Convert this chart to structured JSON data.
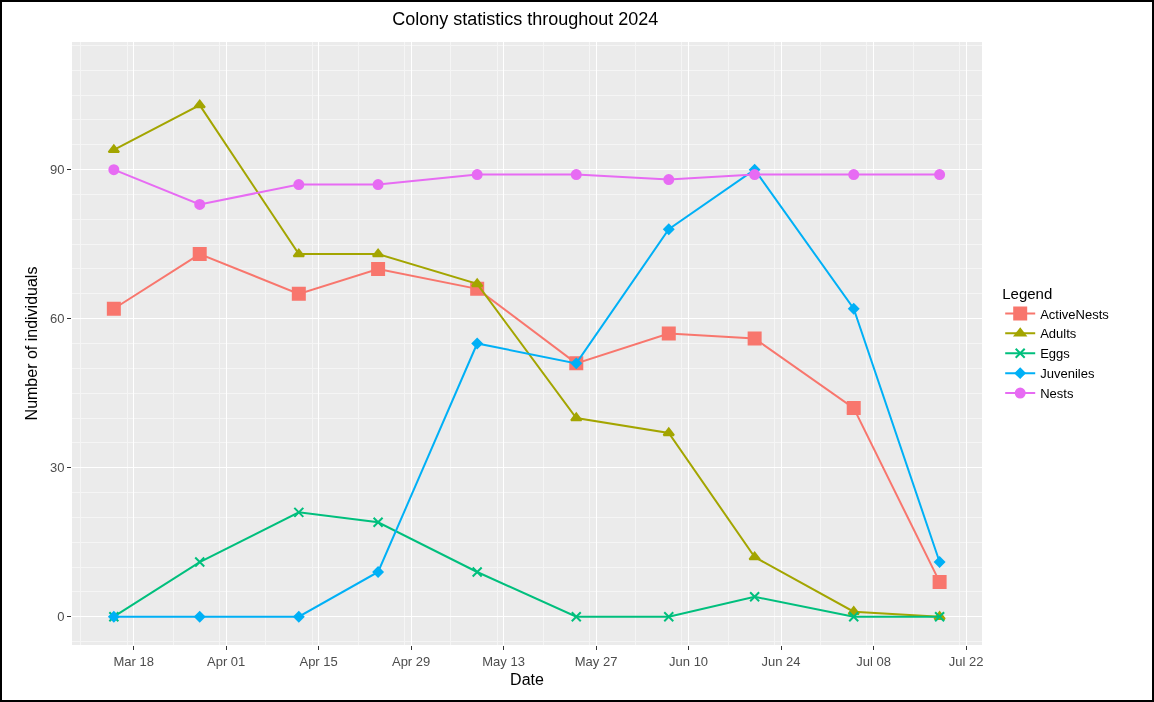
{
  "chart_data": {
    "type": "line",
    "title": "Colony statistics throughout 2024",
    "xlabel": "Date",
    "ylabel": "Number of individuals",
    "legend_title": "Legend",
    "x": [
      "2024-03-15",
      "2024-03-28",
      "2024-04-12",
      "2024-04-24",
      "2024-05-09",
      "2024-05-24",
      "2024-06-07",
      "2024-06-20",
      "2024-07-05",
      "2024-07-18"
    ],
    "series": [
      {
        "name": "ActiveNests",
        "color": "#f8766d",
        "marker": "square",
        "values": [
          62,
          73,
          65,
          70,
          66,
          51,
          57,
          56,
          42,
          7
        ]
      },
      {
        "name": "Adults",
        "color": "#a3a500",
        "marker": "triangle",
        "values": [
          94,
          103,
          73,
          73,
          67,
          40,
          37,
          12,
          1,
          0
        ]
      },
      {
        "name": "Eggs",
        "color": "#00bf7d",
        "marker": "cross",
        "values": [
          0,
          11,
          21,
          19,
          9,
          0,
          0,
          4,
          0,
          0
        ]
      },
      {
        "name": "Juveniles",
        "color": "#00b0f6",
        "marker": "diamond",
        "values": [
          0,
          0,
          0,
          9,
          55,
          51,
          78,
          90,
          62,
          11
        ]
      },
      {
        "name": "Nests",
        "color": "#e76bf3",
        "marker": "circle",
        "values": [
          90,
          83,
          87,
          87,
          89,
          89,
          88,
          89,
          89,
          89
        ]
      }
    ],
    "xlim": [
      "2024-03-08T16:00",
      "2024-07-24T10:00"
    ],
    "xticks": [
      {
        "value": "2024-03-18",
        "label": "Mar 18"
      },
      {
        "value": "2024-04-01",
        "label": "Apr 01"
      },
      {
        "value": "2024-04-15",
        "label": "Apr 15"
      },
      {
        "value": "2024-04-29",
        "label": "Apr 29"
      },
      {
        "value": "2024-05-13",
        "label": "May 13"
      },
      {
        "value": "2024-05-27",
        "label": "May 27"
      },
      {
        "value": "2024-06-10",
        "label": "Jun 10"
      },
      {
        "value": "2024-06-24",
        "label": "Jun 24"
      },
      {
        "value": "2024-07-08",
        "label": "Jul 08"
      },
      {
        "value": "2024-07-22",
        "label": "Jul 22"
      }
    ],
    "ylim": [
      -5.7,
      115.7
    ],
    "yticks": [
      0,
      30,
      60,
      90
    ],
    "grid": true,
    "legend": "right",
    "line_style": "solid"
  }
}
